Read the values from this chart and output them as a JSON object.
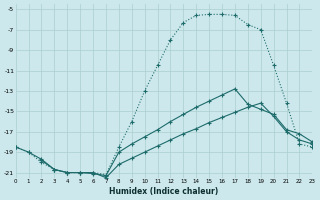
{
  "xlabel": "Humidex (Indice chaleur)",
  "background_color": "#cce8ec",
  "grid_color": "#aacfcf",
  "line_color": "#1e6b6b",
  "xlim": [
    0,
    23
  ],
  "ylim": [
    -21.5,
    -4.5
  ],
  "yticks": [
    -5,
    -7,
    -9,
    -11,
    -13,
    -15,
    -17,
    -19,
    -21
  ],
  "xticks": [
    0,
    1,
    2,
    3,
    4,
    5,
    6,
    7,
    8,
    9,
    10,
    11,
    12,
    13,
    14,
    15,
    16,
    17,
    18,
    19,
    20,
    21,
    22,
    23
  ],
  "curve_dotted_x": [
    0,
    1,
    2,
    3,
    4,
    5,
    6,
    7,
    8,
    9,
    10,
    11,
    12,
    13,
    14,
    15,
    16,
    17,
    18,
    19,
    20,
    21,
    22,
    23
  ],
  "curve_dotted_y": [
    -18.5,
    -19.0,
    -20.0,
    -20.7,
    -21.0,
    -21.0,
    -21.0,
    -21.2,
    -18.5,
    -16.0,
    -13.0,
    -10.5,
    -8.0,
    -6.3,
    -5.6,
    -5.5,
    -5.5,
    -5.6,
    -6.5,
    -7.0,
    -10.5,
    -14.2,
    -18.2,
    -18.5
  ],
  "curve_dashed_x": [
    2,
    3,
    4,
    5,
    6,
    7,
    8,
    9,
    10,
    11,
    12,
    13,
    14,
    15,
    16,
    17,
    18,
    19,
    20,
    21,
    22,
    23
  ],
  "curve_dashed_y": [
    -19.8,
    -20.7,
    -21.0,
    -21.0,
    -21.1,
    -21.3,
    -19.0,
    -18.2,
    -17.5,
    -16.8,
    -16.0,
    -15.3,
    -14.6,
    -14.0,
    -13.4,
    -12.8,
    -14.3,
    -14.8,
    -15.3,
    -16.8,
    -17.2,
    -18.0
  ],
  "curve_solid_x": [
    0,
    1,
    2,
    3,
    4,
    5,
    6,
    7,
    8,
    9,
    10,
    11,
    12,
    13,
    14,
    15,
    16,
    17,
    18,
    19,
    20,
    21,
    22,
    23
  ],
  "curve_solid_y": [
    -18.5,
    -19.0,
    -19.7,
    -20.7,
    -21.0,
    -21.0,
    -21.0,
    -21.5,
    -20.2,
    -19.6,
    -19.0,
    -18.4,
    -17.8,
    -17.2,
    -16.7,
    -16.1,
    -15.6,
    -15.1,
    -14.6,
    -14.2,
    -15.5,
    -17.0,
    -17.8,
    -18.2
  ]
}
